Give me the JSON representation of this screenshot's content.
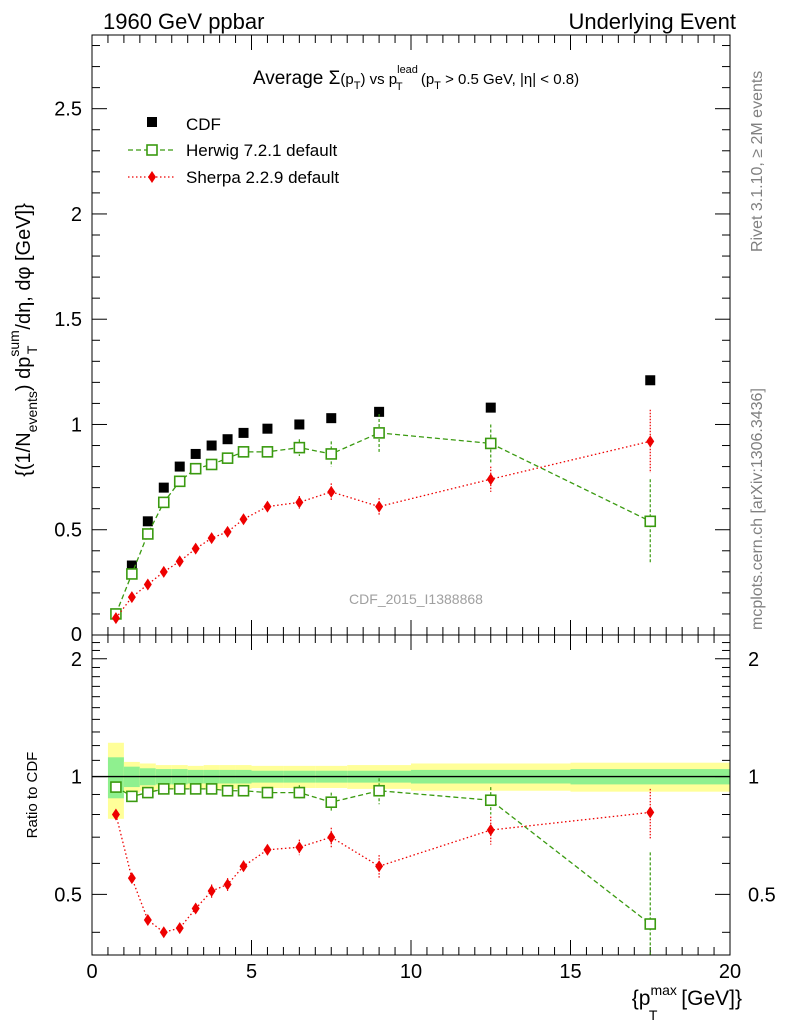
{
  "header": {
    "left": "1960 GeV ppbar",
    "right": "Underlying Event"
  },
  "side_labels": {
    "rivet": "Rivet 3.1.10, ≥ 2M events",
    "mcplots": "mcplots.cern.ch [arXiv:1306.3436]"
  },
  "watermark": "CDF_2015_I1388868",
  "chart_data": [
    {
      "type": "scatter",
      "title": "Average Σ(p_T) vs p_T^lead (p_T > 0.5 GeV, |η| < 0.8)",
      "title_parts": {
        "lead": "Average ",
        "sigma": "Σ",
        "open": "(p",
        "sub_t": "T",
        "close": ") vs p",
        "sup_lead": "lead",
        "sub_t2": "T",
        "tail_open": " (p",
        "sub_t3": "T",
        "tail": " > 0.5 GeV, |η| < 0.8)"
      },
      "ylabel": "{(1/N_events) dp_T^sum/dη, dφ [GeV]}",
      "ylabel_parts": {
        "p1": "{(1/N",
        "sub_events": "events",
        "p2": ") dp",
        "sup_sum": "sum",
        "sub_t": "T",
        "p3": "/dη, dφ [GeV]}"
      },
      "xlim": [
        0,
        20
      ],
      "ylim": [
        0,
        2.85
      ],
      "yticks": [
        "0.5",
        "1",
        "1.5",
        "2",
        "2.5"
      ],
      "ytick_values": [
        0.5,
        1,
        1.5,
        2,
        2.5
      ],
      "ytick_zero": "0",
      "legend": {
        "placement": "top-left",
        "entries": [
          "CDF",
          "Herwig 7.2.1 default",
          "Sherpa 2.2.9 default"
        ]
      },
      "series": [
        {
          "name": "CDF",
          "marker": "filled-square",
          "color": "#000000",
          "x": [
            0.75,
            1.25,
            1.75,
            2.25,
            2.75,
            3.25,
            3.75,
            4.25,
            4.75,
            5.5,
            6.5,
            7.5,
            9.0,
            12.5,
            17.5
          ],
          "y": [
            0.1,
            0.33,
            0.54,
            0.7,
            0.8,
            0.86,
            0.9,
            0.93,
            0.96,
            0.98,
            1.0,
            1.03,
            1.06,
            1.08,
            1.21
          ],
          "err": [
            0.01,
            0.01,
            0.01,
            0.01,
            0.01,
            0.01,
            0.01,
            0.01,
            0.01,
            0.01,
            0.01,
            0.01,
            0.01,
            0.01,
            0.02
          ]
        },
        {
          "name": "Herwig 7.2.1 default",
          "marker": "open-square",
          "line": "dashed",
          "color": "#3a9a10",
          "x": [
            0.75,
            1.25,
            1.75,
            2.25,
            2.75,
            3.25,
            3.75,
            4.25,
            4.75,
            5.5,
            6.5,
            7.5,
            9.0,
            12.5,
            17.5
          ],
          "y": [
            0.1,
            0.29,
            0.48,
            0.63,
            0.73,
            0.79,
            0.81,
            0.84,
            0.87,
            0.87,
            0.89,
            0.86,
            0.96,
            0.91,
            0.54
          ],
          "err": [
            0.01,
            0.01,
            0.01,
            0.01,
            0.01,
            0.01,
            0.01,
            0.01,
            0.02,
            0.02,
            0.04,
            0.06,
            0.09,
            0.09,
            0.2
          ]
        },
        {
          "name": "Sherpa 2.2.9 default",
          "marker": "filled-diamond",
          "line": "dotted",
          "color": "#ee0000",
          "x": [
            0.75,
            1.25,
            1.75,
            2.25,
            2.75,
            3.25,
            3.75,
            4.25,
            4.75,
            5.5,
            6.5,
            7.5,
            9.0,
            12.5,
            17.5
          ],
          "y": [
            0.08,
            0.18,
            0.24,
            0.3,
            0.35,
            0.41,
            0.46,
            0.49,
            0.55,
            0.61,
            0.63,
            0.68,
            0.61,
            0.74,
            0.92
          ],
          "err": [
            0.01,
            0.01,
            0.01,
            0.01,
            0.01,
            0.01,
            0.02,
            0.02,
            0.02,
            0.02,
            0.03,
            0.04,
            0.04,
            0.06,
            0.15
          ]
        }
      ]
    },
    {
      "type": "scatter",
      "ylabel": "Ratio to CDF",
      "xlabel": "{p_T^max [GeV]}",
      "xlabel_parts": {
        "p1": "{p",
        "sup_max": "max",
        "sub_t": "T",
        "p2": " [GeV]}"
      },
      "xlim": [
        0,
        20
      ],
      "ylim": [
        0.35,
        2.3
      ],
      "xticks": [
        "0",
        "5",
        "10",
        "15",
        "20"
      ],
      "xtick_values": [
        0,
        5,
        10,
        15,
        20
      ],
      "yticks": [
        "0.5",
        "1",
        "2"
      ],
      "ytick_values": [
        0.5,
        1,
        2
      ],
      "reference_line": 1,
      "bands": {
        "x_edges": [
          0.5,
          1.0,
          1.5,
          2.0,
          2.5,
          3.0,
          3.5,
          4.0,
          4.5,
          5.0,
          6.0,
          7.0,
          8.0,
          10.0,
          15.0,
          20.0
        ],
        "inner_halfwidth": [
          0.12,
          0.06,
          0.05,
          0.045,
          0.045,
          0.04,
          0.04,
          0.04,
          0.04,
          0.035,
          0.035,
          0.035,
          0.035,
          0.04,
          0.045
        ],
        "outer_halfwidth": [
          0.22,
          0.09,
          0.08,
          0.07,
          0.07,
          0.065,
          0.07,
          0.07,
          0.07,
          0.065,
          0.065,
          0.065,
          0.07,
          0.08,
          0.085
        ],
        "inner_color": "#8ff08f",
        "outer_color": "#ffff99"
      },
      "series": [
        {
          "name": "Herwig 7.2.1 default",
          "marker": "open-square",
          "line": "dashed",
          "color": "#3a9a10",
          "x": [
            0.75,
            1.25,
            1.75,
            2.25,
            2.75,
            3.25,
            3.75,
            4.25,
            4.75,
            5.5,
            6.5,
            7.5,
            9.0,
            12.5,
            17.5
          ],
          "y": [
            0.94,
            0.89,
            0.91,
            0.93,
            0.93,
            0.93,
            0.93,
            0.92,
            0.92,
            0.91,
            0.91,
            0.86,
            0.92,
            0.87,
            0.42
          ],
          "err": [
            0.02,
            0.01,
            0.01,
            0.01,
            0.01,
            0.01,
            0.01,
            0.01,
            0.01,
            0.02,
            0.04,
            0.05,
            0.07,
            0.07,
            0.22
          ]
        },
        {
          "name": "Sherpa 2.2.9 default",
          "marker": "filled-diamond",
          "line": "dotted",
          "color": "#ee0000",
          "x": [
            0.75,
            1.25,
            1.75,
            2.25,
            2.75,
            3.25,
            3.75,
            4.25,
            4.75,
            5.5,
            6.5,
            7.5,
            9.0,
            12.5,
            17.5
          ],
          "y": [
            0.8,
            0.55,
            0.43,
            0.4,
            0.41,
            0.46,
            0.51,
            0.53,
            0.59,
            0.65,
            0.66,
            0.7,
            0.59,
            0.73,
            0.81
          ],
          "err": [
            0.02,
            0.01,
            0.01,
            0.01,
            0.01,
            0.01,
            0.02,
            0.02,
            0.02,
            0.02,
            0.03,
            0.04,
            0.04,
            0.06,
            0.12
          ]
        }
      ]
    }
  ]
}
